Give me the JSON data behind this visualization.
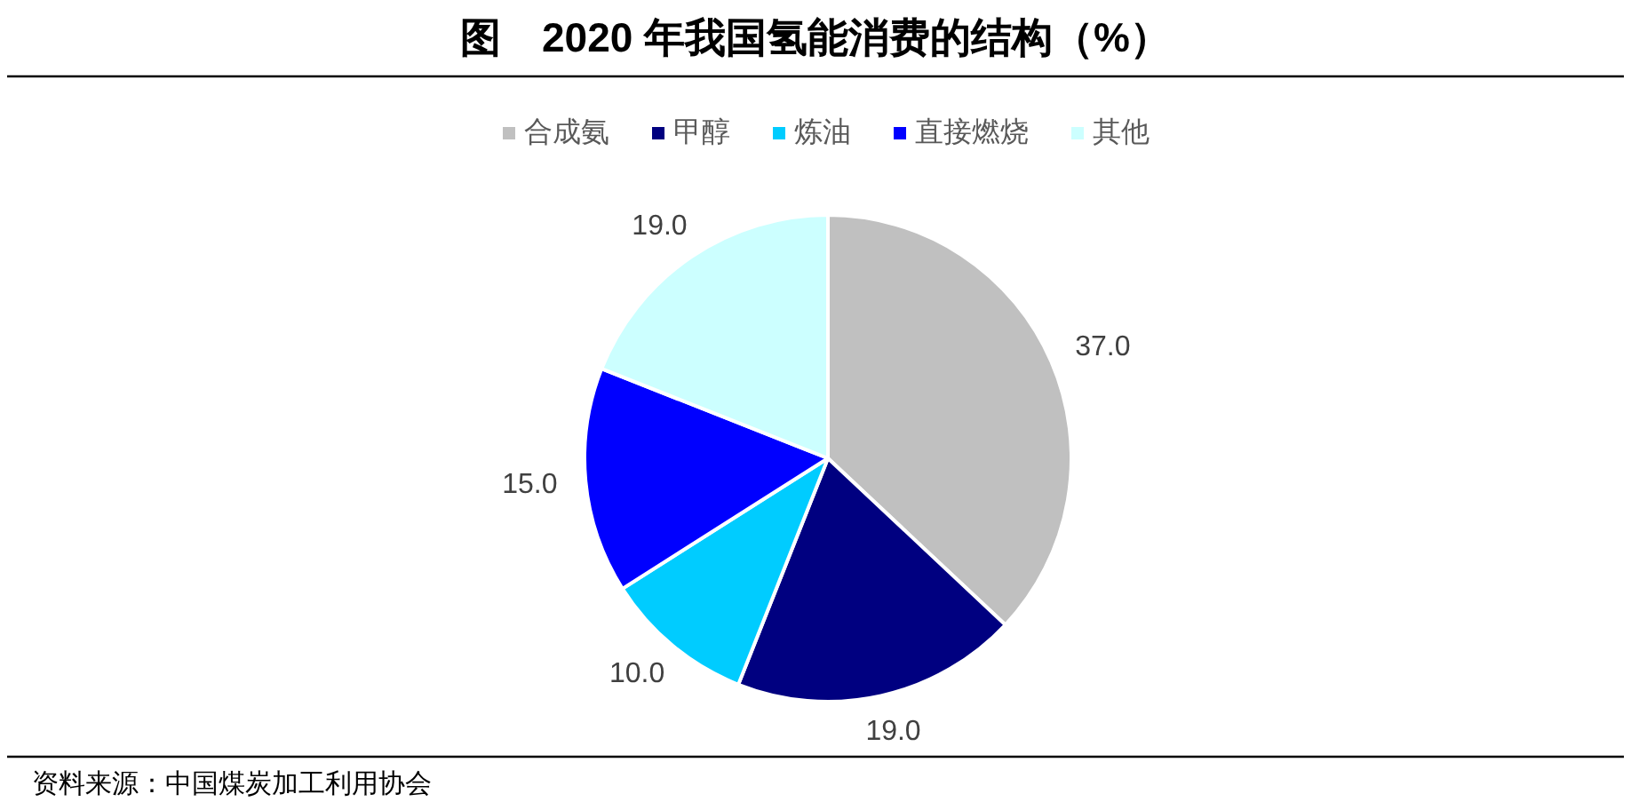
{
  "chart_data": {
    "type": "pie",
    "title": "图　2020 年我国氢能消费的结构（%）",
    "categories": [
      "合成氨",
      "甲醇",
      "炼油",
      "直接燃烧",
      "其他"
    ],
    "values": [
      37,
      19,
      10,
      15,
      19
    ],
    "colors": [
      "#c0c0c0",
      "#000080",
      "#00ccff",
      "#0000ff",
      "#ccffff"
    ],
    "value_labels": [
      "37.0",
      "19.0",
      "10.0",
      "15.0",
      "19.0"
    ],
    "legend": "top",
    "annotations": [
      "资料来源：中国煤炭加工利用协会"
    ]
  }
}
